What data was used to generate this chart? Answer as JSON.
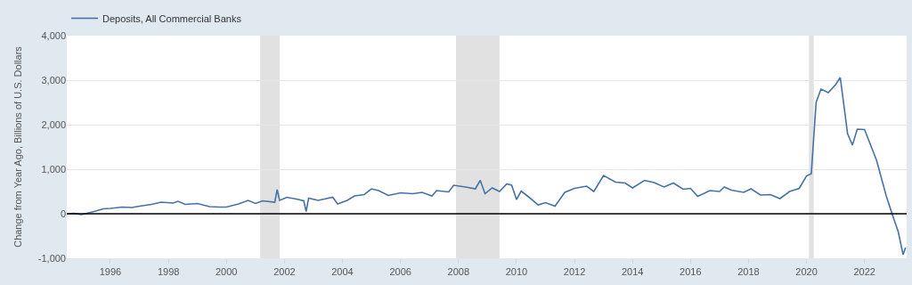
{
  "chart_data": {
    "type": "line",
    "ylabel": "Change from Year Ago, Billions of U.S. Dollars",
    "xlim": [
      "1994-07-01",
      "2023-06-15"
    ],
    "xticks": [
      {
        "value": "1996-01-01",
        "label": "1996"
      },
      {
        "value": "1998-01-01",
        "label": "1998"
      },
      {
        "value": "2000-01-01",
        "label": "2000"
      },
      {
        "value": "2002-01-01",
        "label": "2002"
      },
      {
        "value": "2004-01-01",
        "label": "2004"
      },
      {
        "value": "2006-01-01",
        "label": "2006"
      },
      {
        "value": "2008-01-01",
        "label": "2008"
      },
      {
        "value": "2010-01-01",
        "label": "2010"
      },
      {
        "value": "2012-01-01",
        "label": "2012"
      },
      {
        "value": "2014-01-01",
        "label": "2014"
      },
      {
        "value": "2016-01-01",
        "label": "2016"
      },
      {
        "value": "2018-01-01",
        "label": "2018"
      },
      {
        "value": "2020-01-01",
        "label": "2020"
      },
      {
        "value": "2022-01-01",
        "label": "2022"
      }
    ],
    "ylim": [
      -1000,
      4000
    ],
    "yticks": [
      {
        "value": -1000,
        "label": "-1,000"
      },
      0,
      {
        "value": 1000,
        "label": "1,000"
      },
      {
        "value": 2000,
        "label": "2,000"
      },
      {
        "value": 3000,
        "label": "3,000"
      },
      {
        "value": 4000,
        "label": "4,000"
      }
    ],
    "grid": "y",
    "legend": "top left",
    "marker": "none",
    "line_style": "solid",
    "ref_lines": [
      {
        "axis": "y",
        "value": 0,
        "color": "#000000"
      }
    ],
    "bands": [
      {
        "axis": "x",
        "from": "2001-03-01",
        "to": "2001-11-01",
        "color": "#e1e1e1"
      },
      {
        "axis": "x",
        "from": "2007-12-01",
        "to": "2009-06-01",
        "color": "#e1e1e1"
      },
      {
        "axis": "x",
        "from": "2020-02-01",
        "to": "2020-04-01",
        "color": "#e1e1e1"
      }
    ],
    "x": [
      "1994-07",
      "1994-10",
      "1995-01",
      "1995-04",
      "1995-07",
      "1995-10",
      "1996-01",
      "1996-06",
      "1996-10",
      "1997-01",
      "1997-06",
      "1997-10",
      "1998-03",
      "1998-05",
      "1998-08",
      "1999-01",
      "1999-06",
      "1999-10",
      "2000-01",
      "2000-06",
      "2000-10",
      "2001-01",
      "2001-04",
      "2001-09",
      "2001-10",
      "2001-11",
      "2002-02",
      "2002-06",
      "2002-09",
      "2002-10",
      "2002-11",
      "2003-03",
      "2003-09",
      "2003-11",
      "2004-03",
      "2004-06",
      "2004-10",
      "2005-01",
      "2005-04",
      "2005-08",
      "2006-01",
      "2006-06",
      "2006-10",
      "2007-02",
      "2007-04",
      "2007-09",
      "2007-11",
      "2008-04",
      "2008-08",
      "2008-10",
      "2008-12",
      "2009-03",
      "2009-06",
      "2009-09",
      "2009-11",
      "2010-01",
      "2010-03",
      "2010-06",
      "2010-10",
      "2011-01",
      "2011-05",
      "2011-09",
      "2012-01",
      "2012-06",
      "2012-09",
      "2013-01",
      "2013-06",
      "2013-10",
      "2014-01",
      "2014-06",
      "2014-10",
      "2015-02",
      "2015-06",
      "2015-10",
      "2016-01",
      "2016-04",
      "2016-09",
      "2017-01",
      "2017-03",
      "2017-06",
      "2017-11",
      "2018-02",
      "2018-06",
      "2018-10",
      "2019-02",
      "2019-06",
      "2019-10",
      "2020-01",
      "2020-03",
      "2020-05",
      "2020-07",
      "2020-10",
      "2021-01",
      "2021-03",
      "2021-06",
      "2021-08",
      "2021-10",
      "2022-01",
      "2022-06",
      "2022-10",
      "2023-01",
      "2023-03",
      "2023-05",
      "2023-06"
    ],
    "series": [
      {
        "name": "Deposits, All Commercial Banks",
        "color": "#4572a7",
        "values": [
          0,
          10,
          -20,
          20,
          60,
          110,
          120,
          150,
          140,
          170,
          210,
          260,
          240,
          280,
          210,
          230,
          160,
          150,
          150,
          220,
          300,
          230,
          290,
          260,
          540,
          300,
          370,
          330,
          290,
          50,
          350,
          300,
          370,
          220,
          300,
          400,
          430,
          560,
          520,
          410,
          470,
          450,
          480,
          400,
          520,
          490,
          640,
          600,
          560,
          750,
          450,
          580,
          500,
          670,
          640,
          320,
          510,
          380,
          200,
          250,
          170,
          480,
          570,
          620,
          500,
          860,
          710,
          690,
          580,
          750,
          700,
          600,
          690,
          550,
          570,
          390,
          520,
          500,
          600,
          530,
          480,
          560,
          420,
          430,
          340,
          500,
          570,
          850,
          900,
          2500,
          2800,
          2720,
          2900,
          3060,
          1800,
          1540,
          1900,
          1890,
          1200,
          400,
          -100,
          -400,
          -920,
          -760
        ]
      }
    ]
  }
}
